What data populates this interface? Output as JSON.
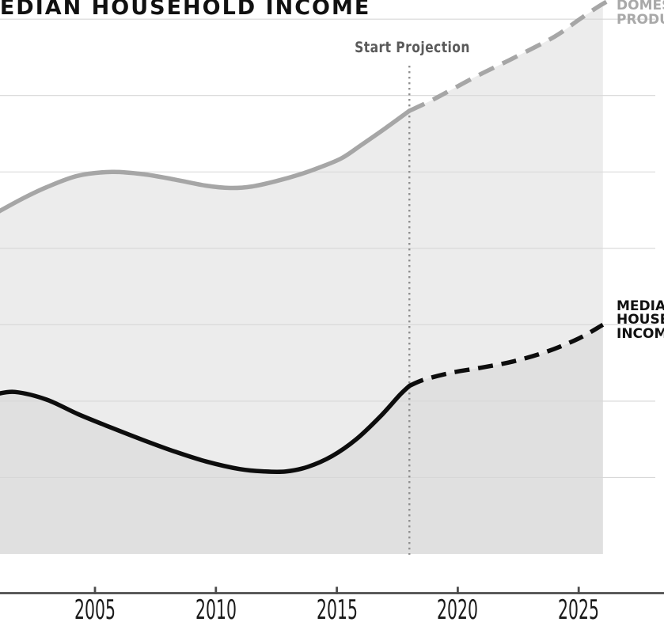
{
  "title": "MEDIAN HOUSEHOLD INCOME",
  "annotations": {
    "start_projection": "Start Projection"
  },
  "series_labels": {
    "gdp_lines": [
      "DOMESTIC",
      "PRODUCT"
    ],
    "income_lines": [
      "MEDIAN",
      "HOUSEHOLD",
      "INCOME"
    ]
  },
  "colors": {
    "background": "#ffffff",
    "gdp_line": "#a6a6a6",
    "income_line": "#0d0d0d",
    "gdp_fill": "#ececec",
    "overlap_fill": "#e0e0e0",
    "gridline": "#d7d7d7",
    "axis": "#4d4d4d",
    "divider_dots": "#8f8f8f",
    "annotation_text": "#5a5a5a",
    "tick_label": "#1a1a1a",
    "gdp_label": "#a9a9a9",
    "income_label": "#111111"
  },
  "chart_data": {
    "type": "line",
    "title": "MEDIAN HOUSEHOLD INCOME",
    "xlabel": "",
    "ylabel": "",
    "x_ticks": [
      2005,
      2010,
      2015,
      2020,
      2025
    ],
    "x_range": [
      2001,
      2027
    ],
    "y_axis": {
      "labels_visible": false,
      "units": "relative index (axis unlabeled)",
      "gridline_values": [
        1,
        2,
        3,
        4,
        5,
        6,
        7
      ],
      "ylim": [
        0,
        7.25
      ]
    },
    "projection": {
      "start_year": 2018,
      "label": "Start Projection"
    },
    "legend_position": "inline-right-edge",
    "grid": true,
    "series": [
      {
        "name": "DOMESTIC PRODUCT",
        "style": "gray, solid then dashed after 2018, area filled",
        "historical": [
          [
            2000.9,
            4.46
          ],
          [
            2002,
            4.65
          ],
          [
            2003,
            4.8
          ],
          [
            2004.3,
            4.95
          ],
          [
            2005.7,
            5.0
          ],
          [
            2007,
            4.97
          ],
          [
            2008.3,
            4.9
          ],
          [
            2009.6,
            4.82
          ],
          [
            2010.6,
            4.79
          ],
          [
            2011.5,
            4.81
          ],
          [
            2012.5,
            4.88
          ],
          [
            2013.5,
            4.97
          ],
          [
            2014.3,
            5.06
          ],
          [
            2015.2,
            5.18
          ],
          [
            2016,
            5.35
          ],
          [
            2017,
            5.57
          ],
          [
            2018,
            5.8
          ]
        ],
        "projection": [
          [
            2018,
            5.8
          ],
          [
            2019,
            5.95
          ],
          [
            2020.7,
            6.24
          ],
          [
            2022.3,
            6.49
          ],
          [
            2024,
            6.77
          ],
          [
            2025,
            6.99
          ],
          [
            2026,
            7.2
          ],
          [
            2026.9,
            7.34
          ]
        ]
      },
      {
        "name": "MEDIAN HOUSEHOLD INCOME",
        "style": "black, solid then dashed after 2018, area filled",
        "historical": [
          [
            2000.9,
            2.09
          ],
          [
            2001.7,
            2.12
          ],
          [
            2003,
            2.02
          ],
          [
            2004.3,
            1.83
          ],
          [
            2005.7,
            1.65
          ],
          [
            2007,
            1.49
          ],
          [
            2008.3,
            1.34
          ],
          [
            2009.6,
            1.21
          ],
          [
            2011,
            1.11
          ],
          [
            2012,
            1.08
          ],
          [
            2012.9,
            1.08
          ],
          [
            2013.8,
            1.14
          ],
          [
            2014.8,
            1.28
          ],
          [
            2015.8,
            1.5
          ],
          [
            2016.8,
            1.8
          ],
          [
            2017.6,
            2.08
          ],
          [
            2018,
            2.2
          ]
        ],
        "projection": [
          [
            2018,
            2.2
          ],
          [
            2018.6,
            2.28
          ],
          [
            2019.7,
            2.37
          ],
          [
            2021,
            2.44
          ],
          [
            2022.3,
            2.52
          ],
          [
            2023.7,
            2.65
          ],
          [
            2025,
            2.82
          ],
          [
            2026,
            3.0
          ]
        ]
      }
    ]
  }
}
